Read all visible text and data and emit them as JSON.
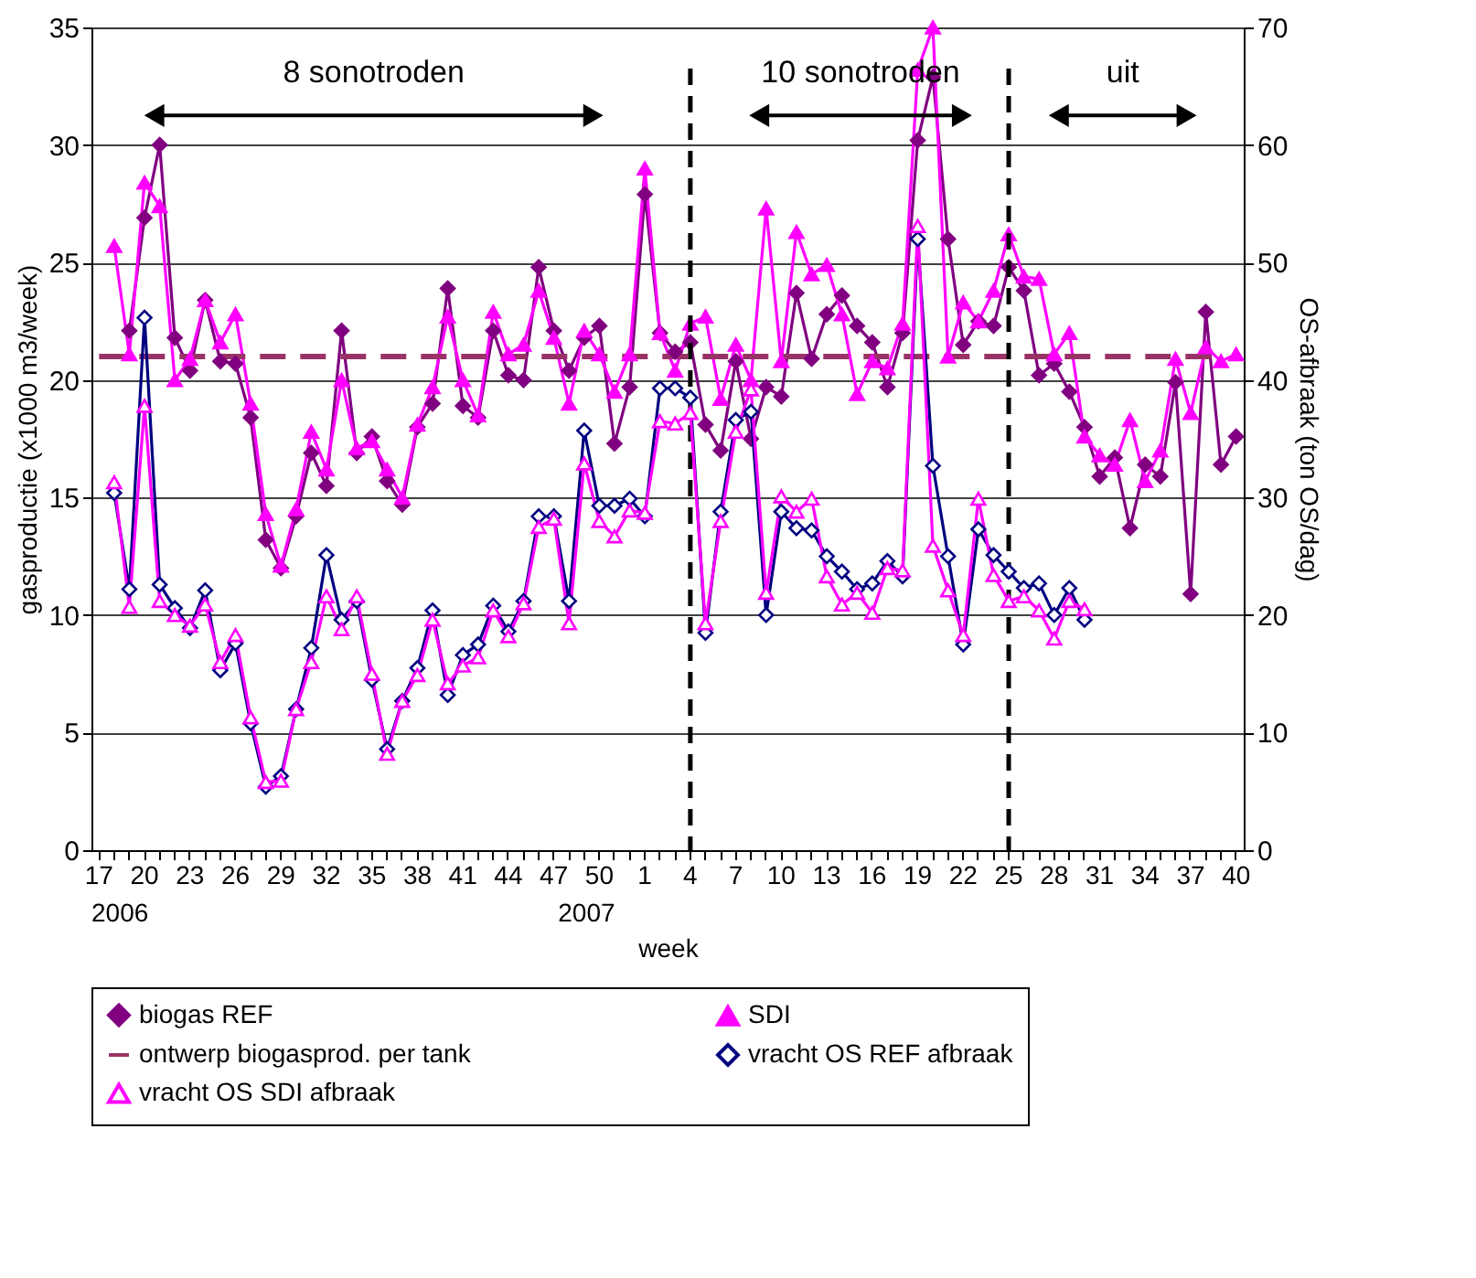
{
  "chart_data": {
    "type": "line",
    "categories": [
      "17",
      null,
      null,
      "20",
      null,
      null,
      "23",
      null,
      null,
      "26",
      null,
      null,
      "29",
      null,
      null,
      "32",
      null,
      null,
      "35",
      null,
      null,
      "38",
      null,
      null,
      "41",
      null,
      null,
      "44",
      null,
      null,
      "47",
      null,
      null,
      "50",
      null,
      null,
      "1",
      null,
      null,
      "4",
      null,
      null,
      "7",
      null,
      null,
      "10",
      null,
      null,
      "13",
      null,
      null,
      "16",
      null,
      null,
      "19",
      null,
      null,
      "22",
      null,
      null,
      "25",
      null,
      null,
      "28",
      null,
      null,
      "31",
      null,
      null,
      "34",
      null,
      null,
      "37",
      null,
      null,
      "40"
    ],
    "xlabel": "week",
    "ylabel": "gasproductie (x1000 m3/week)",
    "y2label": "OS-afbraak (ton OS/dag)",
    "ylim": [
      0,
      35
    ],
    "yticks": [
      0,
      5,
      10,
      15,
      20,
      25,
      30,
      35
    ],
    "y2lim": [
      0,
      70
    ],
    "y2ticks": [
      0,
      10,
      20,
      30,
      40,
      50,
      60,
      70
    ],
    "grid": "y",
    "legend": "bottom",
    "series": [
      {
        "name": "biogas REF",
        "color": "#800080",
        "marker": "diamond",
        "line_style": "solid",
        "axis": "y",
        "values": [
          null,
          null,
          22.1,
          26.9,
          30.0,
          21.8,
          20.4,
          23.4,
          20.8,
          20.7,
          18.4,
          13.2,
          12.0,
          14.2,
          16.9,
          15.5,
          22.1,
          16.9,
          17.6,
          15.7,
          14.7,
          18.0,
          19.0,
          23.9,
          18.9,
          18.4,
          22.1,
          20.2,
          20.0,
          24.8,
          22.1,
          20.4,
          21.8,
          22.3,
          17.3,
          19.7,
          27.9,
          22.0,
          21.2,
          21.6,
          18.1,
          17.0,
          20.8,
          17.5,
          19.7,
          19.3,
          23.7,
          20.9,
          22.8,
          23.6,
          22.3,
          21.6,
          19.7,
          22.0,
          30.2,
          32.9,
          26.0,
          21.5,
          22.5,
          22.3,
          24.8,
          23.8,
          20.2,
          20.7,
          19.5,
          18.0,
          15.9,
          16.7,
          13.7,
          16.4,
          15.9,
          19.9,
          10.9,
          22.9,
          16.4,
          17.6
        ]
      },
      {
        "name": "SDI",
        "color": "#ff00ff",
        "marker": "triangle",
        "line_style": "solid",
        "axis": "y",
        "values": [
          null,
          25.7,
          21.1,
          28.4,
          27.4,
          20.0,
          20.9,
          23.4,
          21.6,
          22.8,
          19.0,
          14.3,
          12.1,
          14.5,
          17.8,
          16.2,
          20.0,
          17.1,
          17.4,
          16.2,
          15.0,
          18.1,
          19.7,
          22.7,
          20.0,
          18.5,
          22.9,
          21.1,
          21.5,
          23.8,
          21.8,
          19.0,
          22.1,
          21.1,
          19.5,
          21.1,
          29.0,
          22.0,
          20.4,
          22.4,
          22.7,
          19.2,
          21.5,
          20.0,
          27.3,
          20.8,
          26.3,
          24.5,
          24.9,
          22.8,
          19.4,
          20.8,
          20.5,
          22.4,
          33.2,
          35,
          21.0,
          23.3,
          22.5,
          23.8,
          26.2,
          24.4,
          24.3,
          21.1,
          22.0,
          17.6,
          16.8,
          16.4,
          18.3,
          15.7,
          17.0,
          20.9,
          18.6,
          21.4,
          20.8,
          21.1
        ]
      },
      {
        "name": "ontwerp biogasprod. per tank",
        "color": "#993366",
        "marker": "none",
        "line_style": "dashed",
        "axis": "y",
        "values": [
          21,
          21,
          21,
          21,
          21,
          21,
          21,
          21,
          21,
          21,
          21,
          21,
          21,
          21,
          21,
          21,
          21,
          21,
          21,
          21,
          21,
          21,
          21,
          21,
          21,
          21,
          21,
          21,
          21,
          21,
          21,
          21,
          21,
          21,
          21,
          21,
          21,
          21,
          21,
          21,
          21,
          21,
          21,
          21,
          21,
          21,
          21,
          21,
          21,
          21,
          21,
          21,
          21,
          21,
          21,
          21,
          21,
          21,
          21,
          21,
          21,
          21,
          21,
          21,
          21,
          21,
          21,
          21,
          21,
          21,
          21,
          21,
          21,
          21,
          21,
          null
        ]
      },
      {
        "name": "vracht OS REF afbraak",
        "color": "#000080",
        "marker": "diamond",
        "line_style": "solid",
        "axis": "y2",
        "values": [
          null,
          30.4,
          22.2,
          45.3,
          22.6,
          20.6,
          18.9,
          22.1,
          15.3,
          17.6,
          10.8,
          5.4,
          6.3,
          12.0,
          17.2,
          25.1,
          19.6,
          21.2,
          14.5,
          8.6,
          12.7,
          15.5,
          20.4,
          13.2,
          16.6,
          17.5,
          20.8,
          18.6,
          21.2,
          28.4,
          28.4,
          21.2,
          35.7,
          29.3,
          29.3,
          29.9,
          28.4,
          39.3,
          39.3,
          38.5,
          18.5,
          28.8,
          36.6,
          37.3,
          20.0,
          28.8,
          27.4,
          27.2,
          25.0,
          23.7,
          22.2,
          22.7,
          24.6,
          23.3,
          52.0,
          32.7,
          25.0,
          17.5,
          27.3,
          25.1,
          23.7,
          22.3,
          22.7,
          20.0,
          22.3,
          19.6,
          null,
          null,
          null,
          null,
          null,
          null,
          null,
          null,
          null,
          null
        ]
      },
      {
        "name": "vracht OS SDI afbraak",
        "color": "#ff00ff",
        "marker": "triangle",
        "line_style": "solid",
        "axis": "y2",
        "values": [
          null,
          31.3,
          20.7,
          37.8,
          21.2,
          20.0,
          19.1,
          20.9,
          16.0,
          18.3,
          11.3,
          5.8,
          5.9,
          12.0,
          16.0,
          21.6,
          18.8,
          21.6,
          15.0,
          8.2,
          12.7,
          14.9,
          19.6,
          14.2,
          15.7,
          16.4,
          20.4,
          18.2,
          21.0,
          27.5,
          28.2,
          19.3,
          32.9,
          28.0,
          26.7,
          28.9,
          28.7,
          36.5,
          36.3,
          37.2,
          19.3,
          28.0,
          35.6,
          39.2,
          21.9,
          30.1,
          28.8,
          29.9,
          23.3,
          20.9,
          21.9,
          20.2,
          24.0,
          23.8,
          53.1,
          25.9,
          22.1,
          18.3,
          29.9,
          23.4,
          21.2,
          21.6,
          20.4,
          18.0,
          21.2,
          20.5,
          null,
          null,
          null,
          null,
          null,
          null,
          null,
          null,
          null,
          null
        ]
      }
    ],
    "ref_lines": [
      {
        "axis": "x",
        "value": "4",
        "color": "#000000",
        "line_style": "dashed"
      },
      {
        "axis": "x",
        "value": "25",
        "color": "#000000",
        "line_style": "dashed"
      }
    ],
    "annotations": [
      "8 sonotroden",
      "10 sonotroden",
      "uit",
      "2006",
      "2007"
    ]
  }
}
